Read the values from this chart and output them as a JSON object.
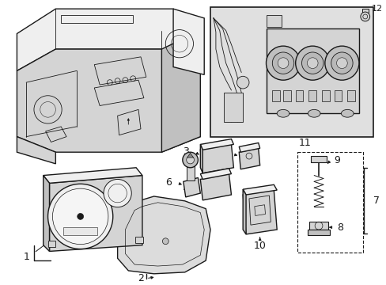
{
  "bg_color": "#ffffff",
  "line_color": "#1a1a1a",
  "fig_width": 4.89,
  "fig_height": 3.6,
  "dpi": 100,
  "gray_fill": "#e8e8e8",
  "dark_gray": "#c0c0c0",
  "mid_gray": "#d4d4d4",
  "light_gray": "#efefef"
}
